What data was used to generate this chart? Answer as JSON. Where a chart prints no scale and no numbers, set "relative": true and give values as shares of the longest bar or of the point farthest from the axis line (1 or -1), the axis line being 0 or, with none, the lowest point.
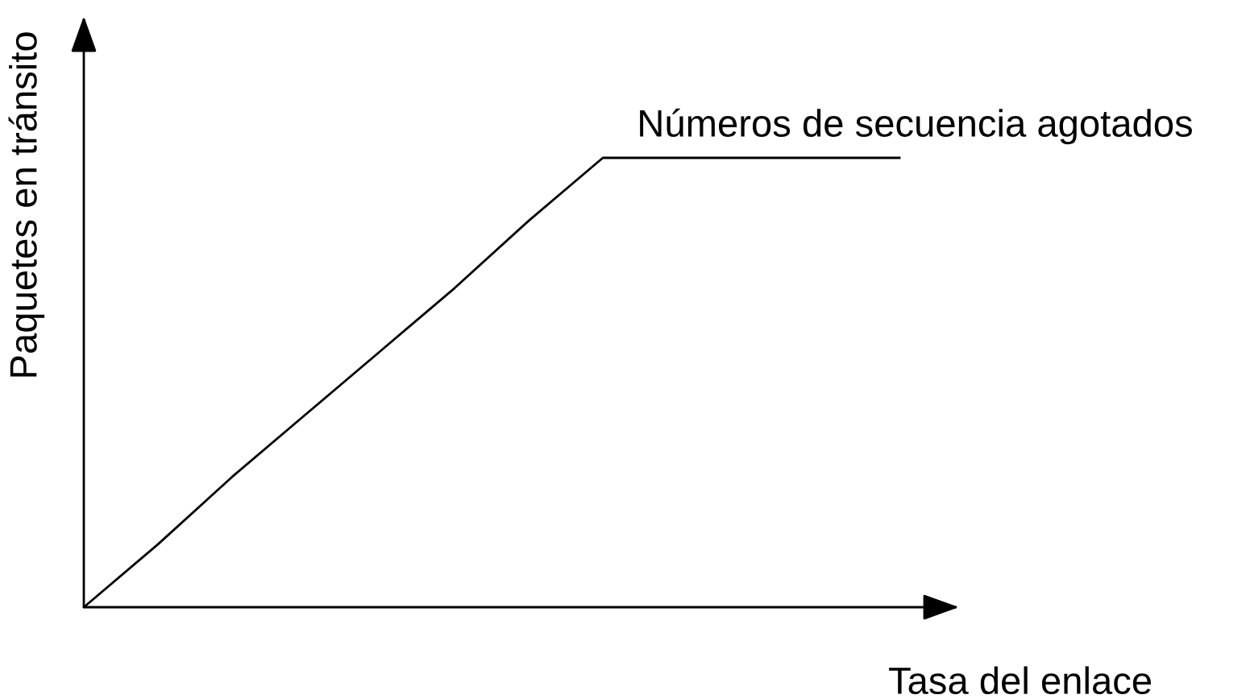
{
  "chart_data": {
    "type": "line",
    "relative": true,
    "xlabel": "Tasa del enlace",
    "ylabel": "Paquetes en tránsito",
    "categories": [
      null,
      null,
      null,
      null,
      null,
      null,
      null,
      null,
      null,
      null,
      null,
      null
    ],
    "series": [
      {
        "name": "Números de secuencia agotados",
        "color": "#000000",
        "values": [
          0,
          0.14,
          0.29,
          0.43,
          0.57,
          0.71,
          0.86,
          1,
          1,
          1,
          1,
          1
        ]
      }
    ],
    "legend": false,
    "marker": "none",
    "line_style": "solid"
  }
}
